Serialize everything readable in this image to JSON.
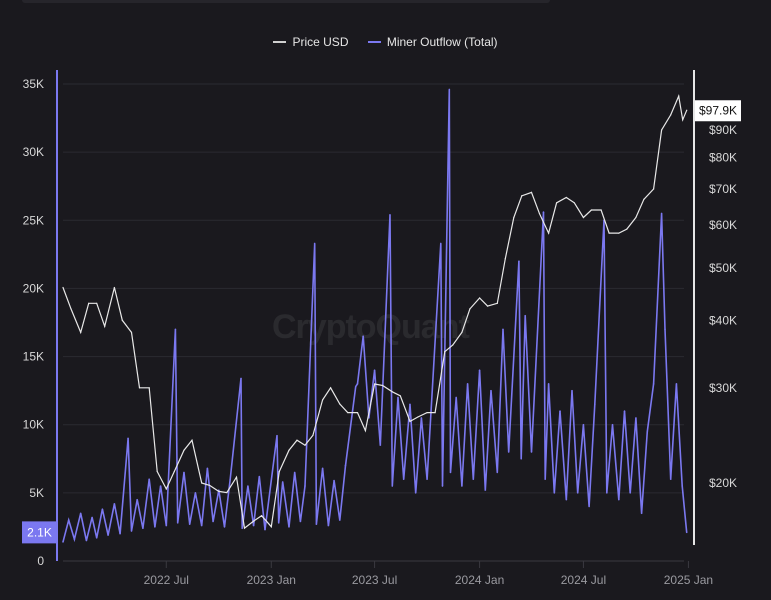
{
  "watermark": "CryptoQuant",
  "colors": {
    "background": "#1a191e",
    "price": "#e8e8e8",
    "outflow": "#7b78f0",
    "grid": "#2b2a31",
    "axis_text": "#d8d8d8"
  },
  "chart_data": {
    "type": "line",
    "title": "",
    "legend": {
      "placement": "top-center",
      "entries": [
        "Price USD",
        "Miner Outflow (Total)"
      ]
    },
    "grid": true,
    "x_axis": {
      "type": "date",
      "range": [
        "2022-01-01",
        "2025-01-02"
      ],
      "ticks": [
        {
          "date": "2022-07-01",
          "label": "2022 Jul"
        },
        {
          "date": "2023-01-01",
          "label": "2023 Jan"
        },
        {
          "date": "2023-07-01",
          "label": "2023 Jul"
        },
        {
          "date": "2024-01-01",
          "label": "2024 Jan"
        },
        {
          "date": "2024-07-01",
          "label": "2024 Jul"
        },
        {
          "date": "2025-01-01",
          "label": "2025 Jan"
        }
      ]
    },
    "left_axis": {
      "range": [
        0,
        35000
      ],
      "ticks": [
        {
          "v": 0,
          "label": "0"
        },
        {
          "v": 5000,
          "label": "5K"
        },
        {
          "v": 10000,
          "label": "10K"
        },
        {
          "v": 15000,
          "label": "15K"
        },
        {
          "v": 20000,
          "label": "20K"
        },
        {
          "v": 25000,
          "label": "25K"
        },
        {
          "v": 30000,
          "label": "30K"
        },
        {
          "v": 35000,
          "label": "35K"
        }
      ],
      "current_value_label": "2.1K"
    },
    "right_axis": {
      "scale": "log",
      "ticks": [
        {
          "v": 20000,
          "label": "$20K"
        },
        {
          "v": 30000,
          "label": "$30K"
        },
        {
          "v": 40000,
          "label": "$40K"
        },
        {
          "v": 50000,
          "label": "$50K"
        },
        {
          "v": 60000,
          "label": "$60K"
        },
        {
          "v": 70000,
          "label": "$70K"
        },
        {
          "v": 80000,
          "label": "$80K"
        },
        {
          "v": 90000,
          "label": "$90K"
        }
      ],
      "current_value_label": "$97.9K"
    },
    "series": [
      {
        "name": "Price USD",
        "axis": "right",
        "points": [
          [
            "2022-01-01",
            46000
          ],
          [
            "2022-01-15",
            42000
          ],
          [
            "2022-02-01",
            38000
          ],
          [
            "2022-02-15",
            43000
          ],
          [
            "2022-03-01",
            43000
          ],
          [
            "2022-03-15",
            39000
          ],
          [
            "2022-04-01",
            46000
          ],
          [
            "2022-04-15",
            40000
          ],
          [
            "2022-05-01",
            38000
          ],
          [
            "2022-05-15",
            30000
          ],
          [
            "2022-06-01",
            30000
          ],
          [
            "2022-06-15",
            21000
          ],
          [
            "2022-07-01",
            19500
          ],
          [
            "2022-07-15",
            21000
          ],
          [
            "2022-08-01",
            23000
          ],
          [
            "2022-08-15",
            24000
          ],
          [
            "2022-09-01",
            20000
          ],
          [
            "2022-09-15",
            19800
          ],
          [
            "2022-10-01",
            19300
          ],
          [
            "2022-10-15",
            19200
          ],
          [
            "2022-11-01",
            20500
          ],
          [
            "2022-11-15",
            16500
          ],
          [
            "2022-12-01",
            17000
          ],
          [
            "2022-12-15",
            17400
          ],
          [
            "2023-01-01",
            16600
          ],
          [
            "2023-01-15",
            21000
          ],
          [
            "2023-02-01",
            23000
          ],
          [
            "2023-02-15",
            24000
          ],
          [
            "2023-03-01",
            23500
          ],
          [
            "2023-03-15",
            24500
          ],
          [
            "2023-04-01",
            28500
          ],
          [
            "2023-04-15",
            30000
          ],
          [
            "2023-05-01",
            28000
          ],
          [
            "2023-05-15",
            27000
          ],
          [
            "2023-06-01",
            27000
          ],
          [
            "2023-06-15",
            25000
          ],
          [
            "2023-07-01",
            30500
          ],
          [
            "2023-07-15",
            30300
          ],
          [
            "2023-08-01",
            29500
          ],
          [
            "2023-08-15",
            29000
          ],
          [
            "2023-09-01",
            26000
          ],
          [
            "2023-09-15",
            26500
          ],
          [
            "2023-10-01",
            27000
          ],
          [
            "2023-10-15",
            27000
          ],
          [
            "2023-11-01",
            35000
          ],
          [
            "2023-11-15",
            36000
          ],
          [
            "2023-12-01",
            38000
          ],
          [
            "2023-12-15",
            42000
          ],
          [
            "2024-01-01",
            44000
          ],
          [
            "2024-01-15",
            42500
          ],
          [
            "2024-02-01",
            43000
          ],
          [
            "2024-02-15",
            52000
          ],
          [
            "2024-03-01",
            62000
          ],
          [
            "2024-03-15",
            68000
          ],
          [
            "2024-04-01",
            69000
          ],
          [
            "2024-04-15",
            63000
          ],
          [
            "2024-05-01",
            58000
          ],
          [
            "2024-05-15",
            66000
          ],
          [
            "2024-06-01",
            67500
          ],
          [
            "2024-06-15",
            66000
          ],
          [
            "2024-07-01",
            62000
          ],
          [
            "2024-07-15",
            64000
          ],
          [
            "2024-08-01",
            64000
          ],
          [
            "2024-08-15",
            58000
          ],
          [
            "2024-09-01",
            58000
          ],
          [
            "2024-09-15",
            59000
          ],
          [
            "2024-10-01",
            62000
          ],
          [
            "2024-10-15",
            67000
          ],
          [
            "2024-11-01",
            70000
          ],
          [
            "2024-11-15",
            90000
          ],
          [
            "2024-12-01",
            96000
          ],
          [
            "2024-12-15",
            104000
          ],
          [
            "2024-12-22",
            94000
          ],
          [
            "2024-12-29",
            97900
          ]
        ]
      },
      {
        "name": "Miner Outflow (Total)",
        "axis": "left",
        "points": [
          [
            "2022-01-01",
            1400
          ],
          [
            "2022-01-11",
            3000
          ],
          [
            "2022-01-21",
            1600
          ],
          [
            "2022-02-01",
            3500
          ],
          [
            "2022-02-11",
            1500
          ],
          [
            "2022-02-21",
            3200
          ],
          [
            "2022-03-01",
            1700
          ],
          [
            "2022-03-11",
            3800
          ],
          [
            "2022-03-21",
            1900
          ],
          [
            "2022-04-01",
            4200
          ],
          [
            "2022-04-11",
            2000
          ],
          [
            "2022-04-25",
            9000
          ],
          [
            "2022-05-01",
            2200
          ],
          [
            "2022-05-11",
            4500
          ],
          [
            "2022-05-21",
            2400
          ],
          [
            "2022-06-01",
            6000
          ],
          [
            "2022-06-11",
            2500
          ],
          [
            "2022-06-21",
            5500
          ],
          [
            "2022-07-01",
            2600
          ],
          [
            "2022-07-17",
            17000
          ],
          [
            "2022-07-21",
            2800
          ],
          [
            "2022-08-01",
            6500
          ],
          [
            "2022-08-11",
            2700
          ],
          [
            "2022-08-21",
            5000
          ],
          [
            "2022-09-01",
            2600
          ],
          [
            "2022-09-11",
            6800
          ],
          [
            "2022-09-21",
            2900
          ],
          [
            "2022-10-01",
            5200
          ],
          [
            "2022-10-11",
            2500
          ],
          [
            "2022-10-21",
            6000
          ],
          [
            "2022-11-09",
            13400
          ],
          [
            "2022-11-11",
            2400
          ],
          [
            "2022-11-21",
            5500
          ],
          [
            "2022-12-01",
            2600
          ],
          [
            "2022-12-11",
            6200
          ],
          [
            "2022-12-21",
            2300
          ],
          [
            "2023-01-11",
            9200
          ],
          [
            "2023-01-14",
            2800
          ],
          [
            "2023-01-21",
            5800
          ],
          [
            "2023-02-01",
            2500
          ],
          [
            "2023-02-11",
            6500
          ],
          [
            "2023-02-21",
            2900
          ],
          [
            "2023-03-01",
            5500
          ],
          [
            "2023-03-18",
            23300
          ],
          [
            "2023-03-21",
            2700
          ],
          [
            "2023-04-01",
            6800
          ],
          [
            "2023-04-11",
            2600
          ],
          [
            "2023-04-21",
            5900
          ],
          [
            "2023-05-01",
            3000
          ],
          [
            "2023-05-11",
            7000
          ],
          [
            "2023-05-29",
            12800
          ],
          [
            "2023-06-01",
            13000
          ],
          [
            "2023-06-11",
            16500
          ],
          [
            "2023-06-21",
            10500
          ],
          [
            "2023-07-01",
            14000
          ],
          [
            "2023-07-11",
            8500
          ],
          [
            "2023-07-28",
            25400
          ],
          [
            "2023-08-01",
            5500
          ],
          [
            "2023-08-11",
            12000
          ],
          [
            "2023-08-21",
            6000
          ],
          [
            "2023-09-01",
            11500
          ],
          [
            "2023-09-11",
            5000
          ],
          [
            "2023-09-21",
            10500
          ],
          [
            "2023-10-01",
            6000
          ],
          [
            "2023-10-25",
            23300
          ],
          [
            "2023-10-28",
            5500
          ],
          [
            "2023-11-09",
            34600
          ],
          [
            "2023-11-11",
            6500
          ],
          [
            "2023-11-21",
            12000
          ],
          [
            "2023-12-01",
            5500
          ],
          [
            "2023-12-11",
            13000
          ],
          [
            "2023-12-21",
            6000
          ],
          [
            "2024-01-01",
            14000
          ],
          [
            "2024-01-11",
            5200
          ],
          [
            "2024-01-21",
            12500
          ],
          [
            "2024-02-01",
            6500
          ],
          [
            "2024-02-11",
            17000
          ],
          [
            "2024-02-21",
            8000
          ],
          [
            "2024-03-10",
            22000
          ],
          [
            "2024-03-14",
            7500
          ],
          [
            "2024-03-21",
            18000
          ],
          [
            "2024-04-01",
            8000
          ],
          [
            "2024-04-22",
            25600
          ],
          [
            "2024-04-25",
            6000
          ],
          [
            "2024-05-01",
            13000
          ],
          [
            "2024-05-11",
            5000
          ],
          [
            "2024-05-21",
            11000
          ],
          [
            "2024-06-01",
            4500
          ],
          [
            "2024-06-11",
            12500
          ],
          [
            "2024-06-21",
            5000
          ],
          [
            "2024-07-01",
            10000
          ],
          [
            "2024-07-11",
            4000
          ],
          [
            "2024-07-21",
            11500
          ],
          [
            "2024-08-06",
            25000
          ],
          [
            "2024-08-11",
            5000
          ],
          [
            "2024-08-21",
            10000
          ],
          [
            "2024-09-01",
            4500
          ],
          [
            "2024-09-11",
            11000
          ],
          [
            "2024-09-21",
            5000
          ],
          [
            "2024-10-01",
            10500
          ],
          [
            "2024-10-11",
            3500
          ],
          [
            "2024-10-21",
            9500
          ],
          [
            "2024-11-01",
            13000
          ],
          [
            "2024-11-15",
            25500
          ],
          [
            "2024-11-21",
            17000
          ],
          [
            "2024-12-01",
            6000
          ],
          [
            "2024-12-11",
            13000
          ],
          [
            "2024-12-21",
            5500
          ],
          [
            "2024-12-29",
            2100
          ]
        ]
      }
    ]
  }
}
